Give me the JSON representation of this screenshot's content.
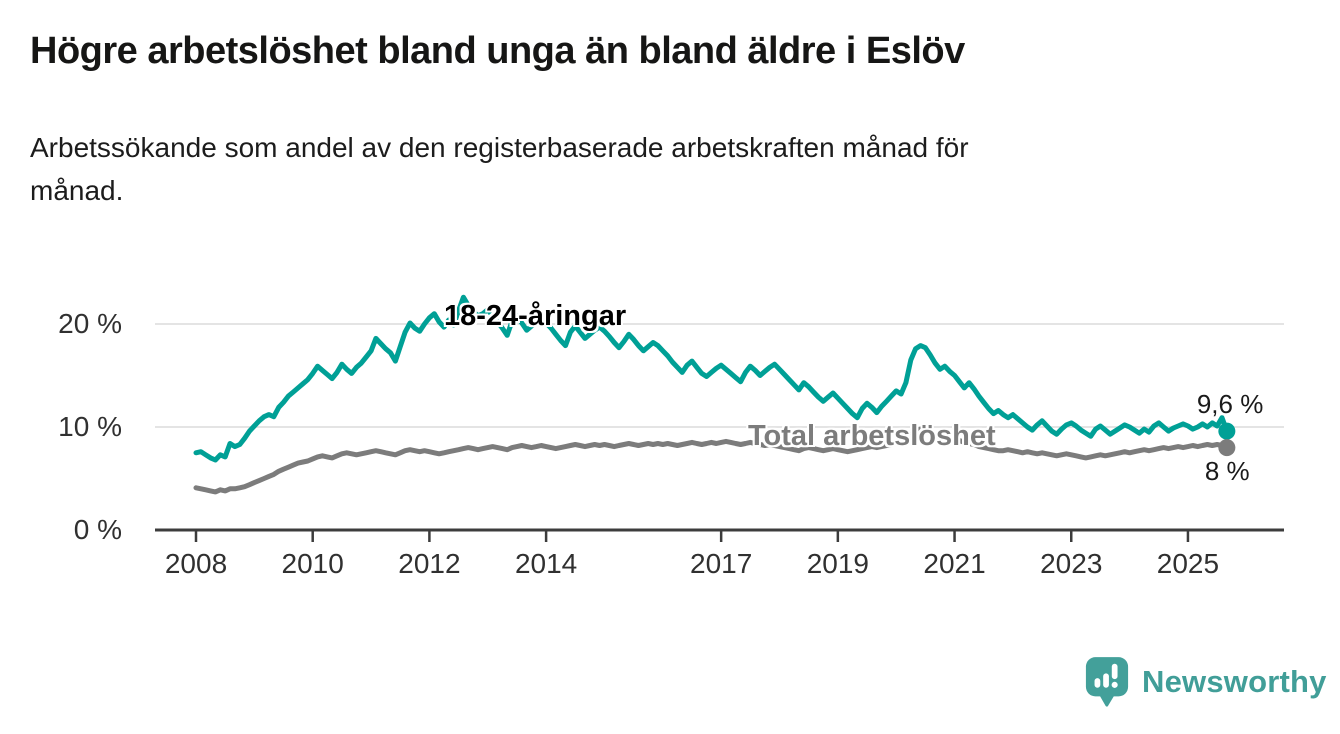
{
  "header": {
    "title": "Högre arbetslöshet bland unga än bland äldre i Eslöv",
    "subtitle": "Arbetssökande som andel av den registerbaserade arbetskraften månad för månad."
  },
  "chart_data": {
    "type": "line",
    "title": "Högre arbetslöshet bland unga än bland äldre i Eslöv",
    "subtitle": "Arbetssökande som andel av den registerbaserade arbetskraften månad för månad.",
    "y_unit": "%",
    "ylim": [
      0,
      24
    ],
    "grid": "horizontal",
    "legend_position": "inline-labels",
    "x_start_year": 2008,
    "points_per_year": 12,
    "x_ticks": [
      {
        "value": 2008,
        "label": "2008"
      },
      {
        "value": 2010,
        "label": "2010"
      },
      {
        "value": 2012,
        "label": "2012"
      },
      {
        "value": 2014,
        "label": "2014"
      },
      {
        "value": 2017,
        "label": "2017"
      },
      {
        "value": 2019,
        "label": "2019"
      },
      {
        "value": 2021,
        "label": "2021"
      },
      {
        "value": 2023,
        "label": "2023"
      },
      {
        "value": 2025,
        "label": "2025"
      }
    ],
    "y_ticks": [
      {
        "value": 0,
        "label": "0 %"
      },
      {
        "value": 10,
        "label": "10 %"
      },
      {
        "value": 20,
        "label": "20 %"
      }
    ],
    "series": [
      {
        "name": "18-24-åringar",
        "color": "#00a096",
        "end_label": "9,6 %",
        "end_value": 9.6,
        "values": [
          7.5,
          7.6,
          7.3,
          7.0,
          6.8,
          7.3,
          7.1,
          8.4,
          8.1,
          8.3,
          8.9,
          9.6,
          10.1,
          10.6,
          11.0,
          11.2,
          11.0,
          11.9,
          12.4,
          13.0,
          13.4,
          13.8,
          14.2,
          14.6,
          15.2,
          15.9,
          15.5,
          15.1,
          14.7,
          15.3,
          16.1,
          15.6,
          15.2,
          15.8,
          16.2,
          16.8,
          17.4,
          18.6,
          18.1,
          17.6,
          17.2,
          16.4,
          17.8,
          19.2,
          20.1,
          19.6,
          19.3,
          20.0,
          20.6,
          21.0,
          20.2,
          19.7,
          20.4,
          19.9,
          21.3,
          22.6,
          21.8,
          21.2,
          20.8,
          21.0,
          21.4,
          20.8,
          20.2,
          19.6,
          18.9,
          20.3,
          20.8,
          20.1,
          19.4,
          19.8,
          20.2,
          20.5,
          20.1,
          19.6,
          19.0,
          18.4,
          17.9,
          19.2,
          19.8,
          19.2,
          18.6,
          19.0,
          19.4,
          19.7,
          19.3,
          18.8,
          18.2,
          17.7,
          18.3,
          19.0,
          18.5,
          17.9,
          17.4,
          17.8,
          18.2,
          17.9,
          17.4,
          16.9,
          16.3,
          15.8,
          15.3,
          16.0,
          16.4,
          15.8,
          15.2,
          14.9,
          15.3,
          15.7,
          16.0,
          15.6,
          15.2,
          14.8,
          14.4,
          15.3,
          15.9,
          15.5,
          15.0,
          15.4,
          15.8,
          16.1,
          15.6,
          15.1,
          14.6,
          14.1,
          13.6,
          14.3,
          13.9,
          13.4,
          12.9,
          12.5,
          12.9,
          13.3,
          12.8,
          12.3,
          11.8,
          11.3,
          10.9,
          11.8,
          12.3,
          11.9,
          11.4,
          12.0,
          12.5,
          13.0,
          13.5,
          13.2,
          14.3,
          16.5,
          17.6,
          17.9,
          17.7,
          17.0,
          16.2,
          15.6,
          15.9,
          15.4,
          15.0,
          14.4,
          13.8,
          14.3,
          13.7,
          13.0,
          12.4,
          11.8,
          11.3,
          11.6,
          11.2,
          10.9,
          11.2,
          10.8,
          10.4,
          10.0,
          9.7,
          10.2,
          10.6,
          10.1,
          9.6,
          9.3,
          9.8,
          10.2,
          10.4,
          10.1,
          9.7,
          9.4,
          9.1,
          9.8,
          10.1,
          9.7,
          9.3,
          9.6,
          9.9,
          10.2,
          10.0,
          9.7,
          9.4,
          9.8,
          9.5,
          10.1,
          10.4,
          10.0,
          9.6,
          9.9,
          10.1,
          10.3,
          10.1,
          9.8,
          10.0,
          10.3,
          10.0,
          10.4,
          10.1,
          10.9,
          9.6
        ]
      },
      {
        "name": "Total arbetslöshet",
        "color": "#7c7c7c",
        "end_label": "8 %",
        "end_value": 8.0,
        "values": [
          4.1,
          4.0,
          3.9,
          3.8,
          3.7,
          3.9,
          3.8,
          4.0,
          4.0,
          4.1,
          4.2,
          4.4,
          4.6,
          4.8,
          5.0,
          5.2,
          5.4,
          5.7,
          5.9,
          6.1,
          6.3,
          6.5,
          6.6,
          6.7,
          6.9,
          7.1,
          7.2,
          7.1,
          7.0,
          7.2,
          7.4,
          7.5,
          7.4,
          7.3,
          7.4,
          7.5,
          7.6,
          7.7,
          7.6,
          7.5,
          7.4,
          7.3,
          7.5,
          7.7,
          7.8,
          7.7,
          7.6,
          7.7,
          7.6,
          7.5,
          7.4,
          7.5,
          7.6,
          7.7,
          7.8,
          7.9,
          8.0,
          7.9,
          7.8,
          7.9,
          8.0,
          8.1,
          8.0,
          7.9,
          7.8,
          8.0,
          8.1,
          8.2,
          8.1,
          8.0,
          8.1,
          8.2,
          8.1,
          8.0,
          7.9,
          8.0,
          8.1,
          8.2,
          8.3,
          8.2,
          8.1,
          8.2,
          8.3,
          8.2,
          8.3,
          8.2,
          8.1,
          8.2,
          8.3,
          8.4,
          8.3,
          8.2,
          8.3,
          8.4,
          8.3,
          8.4,
          8.3,
          8.4,
          8.3,
          8.2,
          8.3,
          8.4,
          8.5,
          8.4,
          8.3,
          8.4,
          8.5,
          8.4,
          8.5,
          8.6,
          8.5,
          8.4,
          8.3,
          8.4,
          8.5,
          8.4,
          8.3,
          8.2,
          8.3,
          8.2,
          8.1,
          8.0,
          7.9,
          7.8,
          7.7,
          7.9,
          8.0,
          7.9,
          7.8,
          7.7,
          7.8,
          7.9,
          7.8,
          7.7,
          7.6,
          7.7,
          7.8,
          7.9,
          8.0,
          8.1,
          8.0,
          8.1,
          8.2,
          8.3,
          8.4,
          8.5,
          8.8,
          9.3,
          9.6,
          9.8,
          9.7,
          9.5,
          9.3,
          9.1,
          9.0,
          8.9,
          8.8,
          8.7,
          8.5,
          8.4,
          8.3,
          8.1,
          8.0,
          7.9,
          7.8,
          7.7,
          7.7,
          7.8,
          7.7,
          7.6,
          7.5,
          7.6,
          7.5,
          7.4,
          7.5,
          7.4,
          7.3,
          7.2,
          7.3,
          7.4,
          7.3,
          7.2,
          7.1,
          7.0,
          7.1,
          7.2,
          7.3,
          7.2,
          7.3,
          7.4,
          7.5,
          7.6,
          7.5,
          7.6,
          7.7,
          7.8,
          7.7,
          7.8,
          7.9,
          8.0,
          7.9,
          8.0,
          8.1,
          8.0,
          8.1,
          8.2,
          8.1,
          8.2,
          8.3,
          8.2,
          8.3,
          8.2,
          8.0
        ]
      }
    ],
    "colors": {
      "youth_line": "#00a096",
      "total_line": "#7c7c7c",
      "gridline": "#dcdcdc",
      "axis": "#3c3c3c",
      "brand_teal": "#43a09a"
    }
  },
  "footer": {
    "brand": "Newsworthy"
  }
}
